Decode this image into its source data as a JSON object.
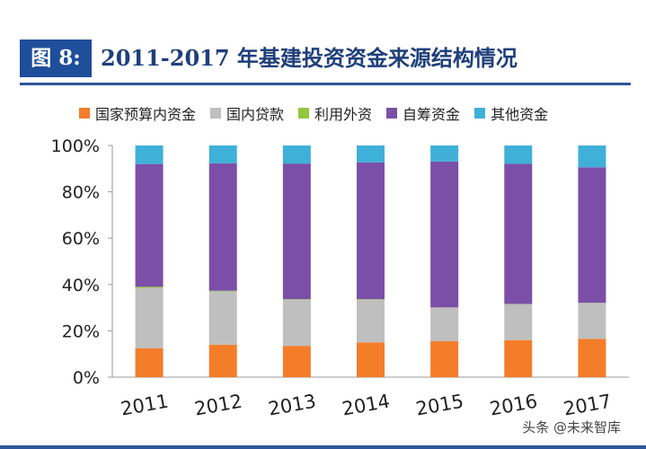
{
  "figure": {
    "badge": "图 8:",
    "title": "2011-2017 年基建投资资金来源结构情况"
  },
  "watermark": "头条 @未来智库",
  "chart_data": {
    "type": "bar",
    "stacked": true,
    "categories": [
      "2011",
      "2012",
      "2013",
      "2014",
      "2015",
      "2016",
      "2017"
    ],
    "series": [
      {
        "name": "国家预算内资金",
        "color": "#f47d2a",
        "values": [
          12.5,
          14,
          13.5,
          15,
          15.5,
          16,
          16.5
        ]
      },
      {
        "name": "国内贷款",
        "color": "#bfbfbf",
        "values": [
          26,
          23,
          20,
          18.5,
          14.5,
          15.5,
          15.5
        ]
      },
      {
        "name": "利用外资",
        "color": "#92c740",
        "values": [
          0.5,
          0.3,
          0.2,
          0.2,
          0.1,
          0.1,
          0.1
        ]
      },
      {
        "name": "自筹资金",
        "color": "#7b4fa8",
        "values": [
          53,
          55,
          58.5,
          59,
          63,
          60.5,
          58.5
        ]
      },
      {
        "name": "其他资金",
        "color": "#3fb0d8",
        "values": [
          8,
          7.7,
          7.8,
          7.3,
          6.9,
          7.9,
          9.4
        ]
      }
    ],
    "y_ticks": [
      "0%",
      "20%",
      "40%",
      "60%",
      "80%",
      "100%"
    ],
    "ylim": [
      0,
      100
    ],
    "grid": false,
    "legend": "top"
  }
}
